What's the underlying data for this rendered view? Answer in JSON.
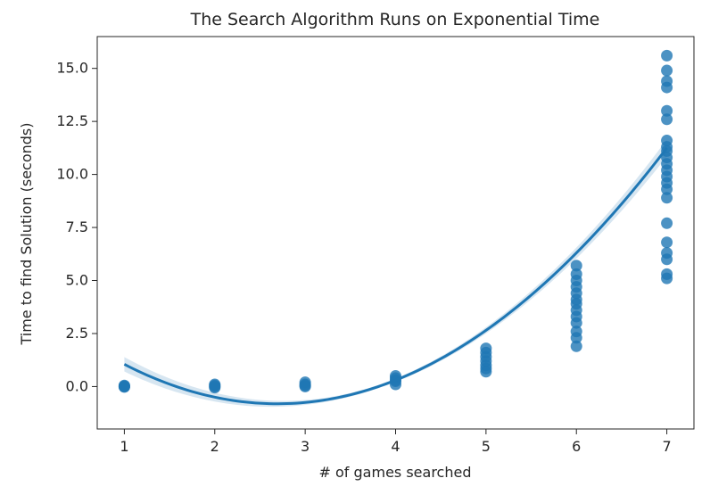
{
  "chart_data": {
    "type": "scatter",
    "title": "The Search Algorithm Runs on Exponential Time",
    "xlabel": "# of games searched",
    "ylabel": "Time to find Solution (seconds)",
    "xlim": [
      0.7,
      7.3
    ],
    "ylim": [
      -2.0,
      16.5
    ],
    "x_ticks": [
      1,
      2,
      3,
      4,
      5,
      6,
      7
    ],
    "x_tick_labels": [
      "1",
      "2",
      "3",
      "4",
      "5",
      "6",
      "7"
    ],
    "y_ticks": [
      0.0,
      2.5,
      5.0,
      7.5,
      10.0,
      12.5,
      15.0
    ],
    "y_tick_labels": [
      "0.0",
      "2.5",
      "5.0",
      "7.5",
      "10.0",
      "12.5",
      "15.0"
    ],
    "grid": false,
    "colors": {
      "points": "#1f77b4",
      "fit_line": "#1f77b4",
      "band": "#1f77b4"
    },
    "series": [
      {
        "type": "scatter",
        "points": [
          [
            1,
            0.0
          ],
          [
            1,
            0.02
          ],
          [
            1,
            0.05
          ],
          [
            1,
            -0.02
          ],
          [
            2,
            -0.05
          ],
          [
            2,
            0.0
          ],
          [
            2,
            0.05
          ],
          [
            2,
            0.1
          ],
          [
            3,
            0.0
          ],
          [
            3,
            0.1
          ],
          [
            3,
            0.2
          ],
          [
            3,
            0.05
          ],
          [
            4,
            0.1
          ],
          [
            4,
            0.25
          ],
          [
            4,
            0.4
          ],
          [
            4,
            0.5
          ],
          [
            4,
            0.3
          ],
          [
            5,
            0.7
          ],
          [
            5,
            0.85
          ],
          [
            5,
            1.0
          ],
          [
            5,
            1.2
          ],
          [
            5,
            1.4
          ],
          [
            5,
            1.6
          ],
          [
            5,
            1.8
          ],
          [
            6,
            1.9
          ],
          [
            6,
            2.3
          ],
          [
            6,
            2.6
          ],
          [
            6,
            3.0
          ],
          [
            6,
            3.3
          ],
          [
            6,
            3.6
          ],
          [
            6,
            3.9
          ],
          [
            6,
            4.1
          ],
          [
            6,
            4.4
          ],
          [
            6,
            4.7
          ],
          [
            6,
            5.0
          ],
          [
            6,
            5.3
          ],
          [
            6,
            5.7
          ],
          [
            7,
            5.1
          ],
          [
            7,
            5.3
          ],
          [
            7,
            6.0
          ],
          [
            7,
            6.3
          ],
          [
            7,
            6.8
          ],
          [
            7,
            7.7
          ],
          [
            7,
            8.9
          ],
          [
            7,
            9.3
          ],
          [
            7,
            9.6
          ],
          [
            7,
            9.9
          ],
          [
            7,
            10.2
          ],
          [
            7,
            10.5
          ],
          [
            7,
            10.8
          ],
          [
            7,
            11.1
          ],
          [
            7,
            11.3
          ],
          [
            7,
            11.6
          ],
          [
            7,
            12.6
          ],
          [
            7,
            13.0
          ],
          [
            7,
            14.1
          ],
          [
            7,
            14.4
          ],
          [
            7,
            14.9
          ],
          [
            7,
            15.6
          ]
        ]
      },
      {
        "type": "line",
        "fit": "quadratic",
        "coefficients": [
          3.9,
          -3.5,
          0.65
        ],
        "x_range": [
          1,
          7
        ]
      }
    ]
  }
}
